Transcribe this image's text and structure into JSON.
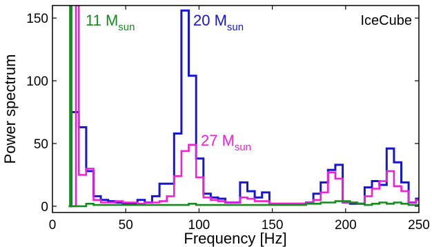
{
  "chart_data": {
    "type": "line",
    "step": true,
    "title": "",
    "xlabel": "Frequency [Hz]",
    "ylabel": "Power spectrum",
    "xlim": [
      0,
      250
    ],
    "ylim": [
      -5,
      160
    ],
    "xticks": [
      0,
      50,
      100,
      150,
      200,
      250
    ],
    "yticks": [
      0,
      50,
      100,
      150
    ],
    "grid": false,
    "corner_label": "IceCube",
    "series": [
      {
        "name_main": "20 M",
        "name_sub": "sun",
        "color": "#1515d6",
        "x": [
          12,
          13,
          18,
          23,
          28,
          33,
          38,
          43,
          48,
          53,
          58,
          63,
          68,
          73,
          78,
          83,
          88,
          93,
          98,
          103,
          108,
          113,
          118,
          123,
          128,
          133,
          138,
          143,
          148,
          153,
          158,
          163,
          168,
          173,
          178,
          183,
          188,
          193,
          198,
          203,
          208,
          213,
          218,
          223,
          228,
          233,
          238,
          243,
          248,
          250
        ],
        "y": [
          0,
          75,
          63,
          28,
          8,
          5,
          4,
          3,
          2,
          2,
          5,
          3,
          8,
          18,
          18,
          58,
          156,
          104,
          38,
          10,
          7,
          6,
          3,
          3,
          19,
          12,
          7,
          11,
          2,
          2,
          2,
          2,
          2,
          3,
          10,
          19,
          29,
          33,
          3,
          2,
          2,
          15,
          20,
          17,
          46,
          35,
          19,
          3,
          6,
          6
        ]
      },
      {
        "name_main": "27 M",
        "name_sub": "sun",
        "color": "#f01fd6",
        "x": [
          14,
          16,
          18,
          23,
          28,
          33,
          38,
          43,
          48,
          53,
          58,
          63,
          68,
          73,
          78,
          83,
          88,
          93,
          98,
          103,
          108,
          113,
          118,
          123,
          128,
          133,
          138,
          143,
          148,
          153,
          158,
          163,
          168,
          173,
          178,
          183,
          188,
          193,
          198,
          203,
          208,
          213,
          218,
          223,
          228,
          233,
          238,
          243,
          248,
          250
        ],
        "y": [
          0,
          160,
          25,
          30,
          5,
          3,
          3,
          4,
          3,
          3,
          2,
          3,
          3,
          4,
          8,
          24,
          44,
          49,
          23,
          7,
          5,
          4,
          3,
          3,
          7,
          6,
          4,
          4,
          2,
          2,
          2,
          2,
          2,
          3,
          5,
          11,
          27,
          22,
          3,
          3,
          2,
          8,
          14,
          20,
          28,
          16,
          12,
          3,
          5,
          5
        ]
      },
      {
        "name_main": "11 M",
        "name_sub": "sun",
        "color": "#17891f",
        "x": [
          11,
          12,
          13,
          18,
          23,
          28,
          33,
          38,
          43,
          48,
          53,
          58,
          63,
          68,
          73,
          78,
          83,
          88,
          93,
          98,
          103,
          108,
          113,
          118,
          123,
          128,
          133,
          138,
          143,
          148,
          153,
          158,
          163,
          168,
          173,
          178,
          183,
          188,
          193,
          198,
          203,
          208,
          213,
          218,
          223,
          228,
          233,
          238,
          243,
          248,
          250
        ],
        "y": [
          0,
          160,
          0,
          0,
          2,
          1,
          1,
          1,
          1,
          1,
          1,
          1,
          1,
          1,
          1,
          1,
          1,
          1,
          2,
          1,
          1,
          1,
          1,
          1,
          1,
          1,
          1,
          1,
          1,
          1,
          1,
          1,
          1,
          1,
          2,
          2,
          3,
          3,
          4,
          4,
          3,
          2,
          1,
          2,
          3,
          2,
          3,
          2,
          1,
          1,
          1
        ]
      }
    ]
  }
}
